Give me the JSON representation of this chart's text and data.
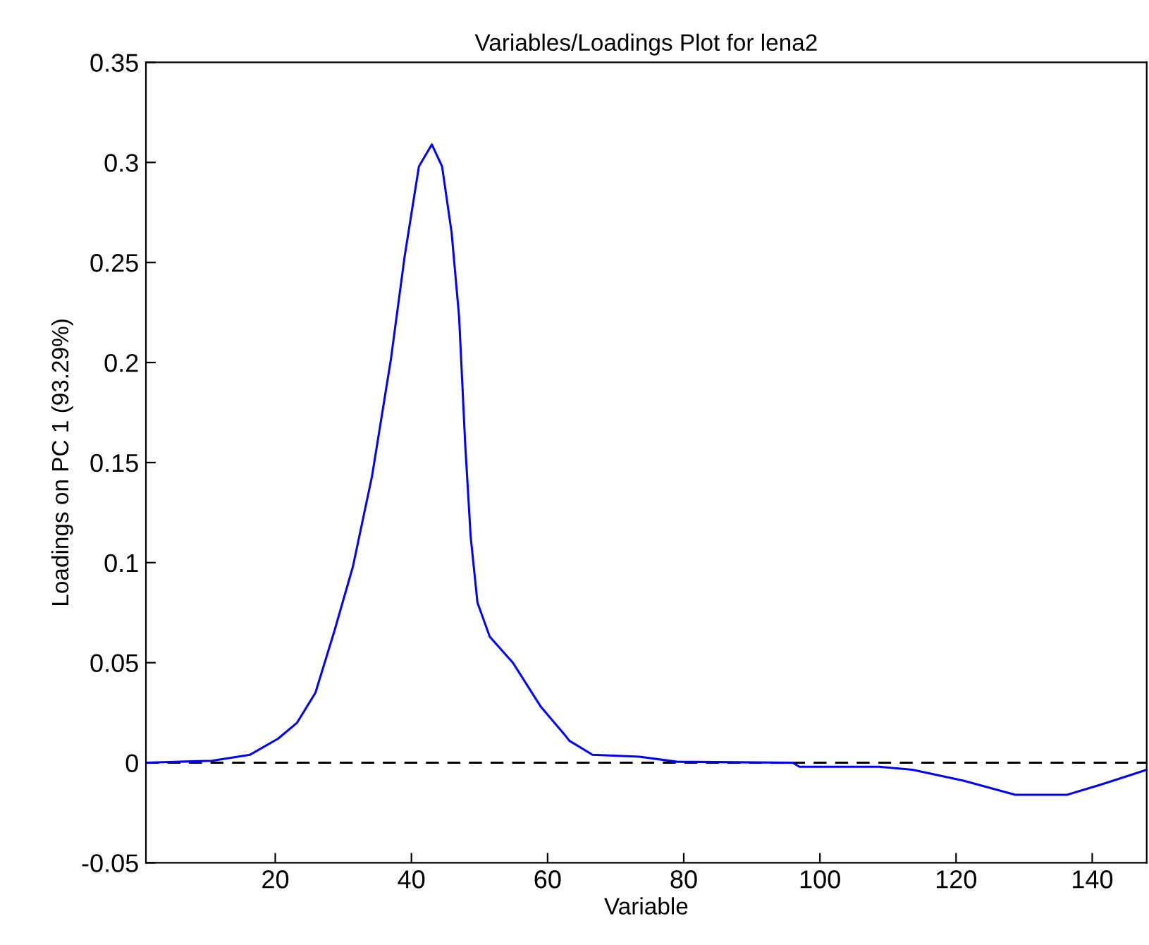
{
  "chart_data": {
    "type": "line",
    "title": "Variables/Loadings Plot for lena2",
    "xlabel": "Variable",
    "ylabel": "Loadings on PC 1 (93.29%)",
    "x": [
      1,
      10.7,
      16.3,
      20.4,
      23.2,
      25.9,
      28.7,
      31.4,
      34.2,
      37.0,
      39.0,
      41.1,
      43.0,
      44.5,
      45.9,
      47.0,
      47.9,
      48.7,
      49.7,
      51.5,
      54.9,
      59.0,
      62.5,
      63.2,
      66.6,
      73.5,
      79,
      96,
      97,
      108.7,
      113.6,
      121.1,
      128.7,
      133.6,
      136.3,
      141.2,
      145.3,
      148
    ],
    "series": [
      {
        "color": "#0000ff",
        "values": [
          0,
          0.001,
          0.004,
          0.012,
          0.02,
          0.035,
          0.066,
          0.098,
          0.143,
          0.202,
          0.253,
          0.298,
          0.309,
          0.298,
          0.265,
          0.223,
          0.159,
          0.113,
          0.08,
          0.063,
          0.05,
          0.028,
          0.014,
          0.011,
          0.004,
          0.003,
          0.0005,
          0,
          -0.002,
          -0.002,
          -0.0035,
          -0.009,
          -0.016,
          -0.016,
          -0.016,
          -0.011,
          -0.0065,
          -0.0035
        ]
      }
    ],
    "xlim": [
      1,
      148
    ],
    "ylim": [
      -0.05,
      0.35
    ],
    "xticks": [
      20,
      40,
      60,
      80,
      100,
      120,
      140
    ],
    "yticks": [
      -0.05,
      0,
      0.05,
      0.1,
      0.15,
      0.2,
      0.25,
      0.3,
      0.35
    ],
    "ref_lines": [
      {
        "axis": "y",
        "value": 0,
        "color": "#000000",
        "line_style": "dashed"
      }
    ]
  }
}
